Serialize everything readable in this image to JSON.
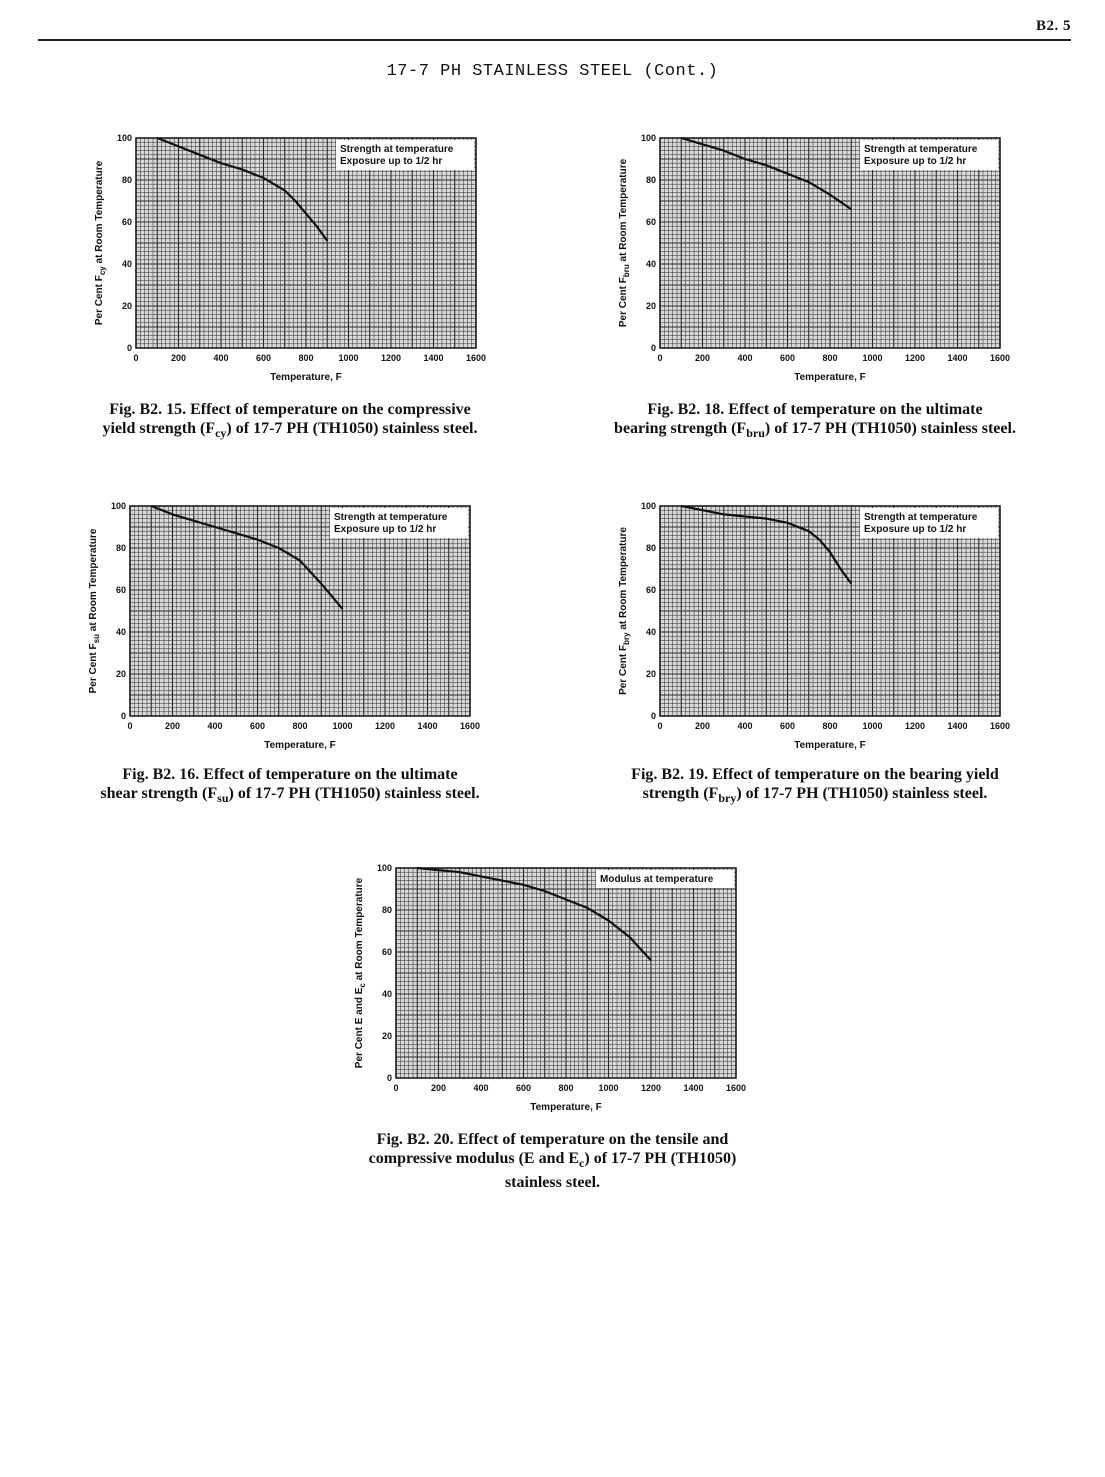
{
  "page": {
    "number": "B2. 5",
    "title": "17-7 PH STAINLESS STEEL (Cont.)"
  },
  "colors": {
    "ink": "#111111",
    "grid": "#2a2a2a",
    "plot_bg": "#d9d9d9"
  },
  "figures": [
    {
      "id": "fig15",
      "caption": {
        "prefix": "Fig.  B2. 15.",
        "line1": "Effect of temperature on the compressive",
        "line2_pre": "yield strength (F",
        "sub": "cy",
        "line2_post": ") of 17-7 PH (TH1050) stainless steel."
      }
    },
    {
      "id": "fig18",
      "caption": {
        "prefix": "Fig.  B2. 18.",
        "line1": "Effect of temperature on the ultimate",
        "line2_pre": "bearing strength (F",
        "sub": "bru",
        "line2_post": ") of 17-7 PH (TH1050) stainless steel."
      }
    },
    {
      "id": "fig16",
      "caption": {
        "prefix": "Fig.  B2. 16.",
        "line1": "Effect of temperature on the ultimate",
        "line2_pre": "shear strength (F",
        "sub": "su",
        "line2_post": ") of 17-7 PH (TH1050) stainless steel."
      }
    },
    {
      "id": "fig19",
      "caption": {
        "prefix": "Fig.  B2. 19.",
        "line1": "Effect of temperature on the bearing yield",
        "line2_pre": "strength (F",
        "sub": "bry",
        "line2_post": ") of 17-7 PH (TH1050) stainless steel."
      }
    },
    {
      "id": "fig20",
      "caption": {
        "prefix": "Fig.  B2. 20.",
        "line1": "Effect of temperature on the tensile and",
        "line2_pre": "compressive modulus (E and E",
        "sub": "c",
        "line2_post": ") of 17-7 PH (TH1050)",
        "line3": "stainless steel."
      }
    }
  ],
  "chart_data": [
    {
      "type": "line",
      "xlabel": "Temperature, F",
      "ylabel": "Per Cent F",
      "ylabel_sub": "cy",
      "ylabel_post": " at Room Temperature",
      "xlim": [
        0,
        1600
      ],
      "ylim": [
        0,
        100
      ],
      "xticks": [
        "0",
        "200",
        "400",
        "600",
        "800",
        "1000",
        "1200",
        "1400",
        "1600"
      ],
      "yticks": [
        "0",
        "20",
        "40",
        "60",
        "80",
        "100"
      ],
      "grid": true,
      "legend": [
        "Strength at temperature",
        "Exposure up to 1/2 hr"
      ],
      "legend_position": "top-right",
      "series": [
        {
          "x": [
            100,
            200,
            300,
            400,
            500,
            600,
            700,
            750,
            800,
            850,
            900
          ],
          "y": [
            100,
            96,
            92,
            88,
            85,
            81,
            75,
            70,
            64,
            58,
            51
          ]
        }
      ]
    },
    {
      "type": "line",
      "xlabel": "Temperature, F",
      "ylabel": "Per Cent F",
      "ylabel_sub": "bru",
      "ylabel_post": " at Room Temperature",
      "xlim": [
        0,
        1600
      ],
      "ylim": [
        0,
        100
      ],
      "xticks": [
        "0",
        "200",
        "400",
        "600",
        "800",
        "1000",
        "1200",
        "1400",
        "1600"
      ],
      "yticks": [
        "0",
        "20",
        "40",
        "60",
        "80",
        "100"
      ],
      "grid": true,
      "legend": [
        "Strength at temperature",
        "Exposure up to 1/2 hr"
      ],
      "legend_position": "top-right",
      "series": [
        {
          "x": [
            100,
            200,
            300,
            400,
            500,
            600,
            700,
            800,
            900
          ],
          "y": [
            100,
            97,
            94,
            90,
            87,
            83,
            79,
            73,
            66
          ]
        }
      ]
    },
    {
      "type": "line",
      "xlabel": "Temperature, F",
      "ylabel": "Per Cent F",
      "ylabel_sub": "su",
      "ylabel_post": " at Room Temperature",
      "xlim": [
        0,
        1600
      ],
      "ylim": [
        0,
        100
      ],
      "xticks": [
        "0",
        "200",
        "400",
        "600",
        "800",
        "1000",
        "1200",
        "1400",
        "1600"
      ],
      "yticks": [
        "0",
        "20",
        "40",
        "60",
        "80",
        "100"
      ],
      "grid": true,
      "legend": [
        "Strength at temperature",
        "Exposure up to 1/2 hr"
      ],
      "legend_position": "top-right",
      "series": [
        {
          "x": [
            100,
            200,
            300,
            400,
            500,
            600,
            700,
            800,
            900,
            1000
          ],
          "y": [
            100,
            96,
            93,
            90,
            87,
            84,
            80,
            74,
            63,
            51
          ]
        }
      ]
    },
    {
      "type": "line",
      "xlabel": "Temperature, F",
      "ylabel": "Per Cent F",
      "ylabel_sub": "bry",
      "ylabel_post": " at Room Temperature",
      "xlim": [
        0,
        1600
      ],
      "ylim": [
        0,
        100
      ],
      "xticks": [
        "0",
        "200",
        "400",
        "600",
        "800",
        "1000",
        "1200",
        "1400",
        "1600"
      ],
      "yticks": [
        "0",
        "20",
        "40",
        "60",
        "80",
        "100"
      ],
      "grid": true,
      "legend": [
        "Strength at temperature",
        "Exposure up to 1/2 hr"
      ],
      "legend_position": "top-right",
      "series": [
        {
          "x": [
            100,
            200,
            300,
            400,
            500,
            600,
            700,
            750,
            800,
            850,
            900
          ],
          "y": [
            100,
            98,
            96,
            95,
            94,
            92,
            88,
            84,
            78,
            70,
            63
          ]
        }
      ]
    },
    {
      "type": "line",
      "xlabel": "Temperature, F",
      "ylabel": "Per Cent E and E",
      "ylabel_sub": "c",
      "ylabel_post": " at Room Temperature",
      "xlim": [
        0,
        1600
      ],
      "ylim": [
        0,
        100
      ],
      "xticks": [
        "0",
        "200",
        "400",
        "600",
        "800",
        "1000",
        "1200",
        "1400",
        "1600"
      ],
      "yticks": [
        "0",
        "20",
        "40",
        "60",
        "80",
        "100"
      ],
      "grid": true,
      "legend": [
        "Modulus at temperature"
      ],
      "legend_position": "top-right",
      "series": [
        {
          "x": [
            100,
            200,
            300,
            400,
            500,
            600,
            700,
            800,
            900,
            1000,
            1100,
            1200
          ],
          "y": [
            100,
            99,
            98,
            96,
            94,
            92,
            89,
            85,
            81,
            75,
            67,
            56
          ]
        }
      ]
    }
  ]
}
